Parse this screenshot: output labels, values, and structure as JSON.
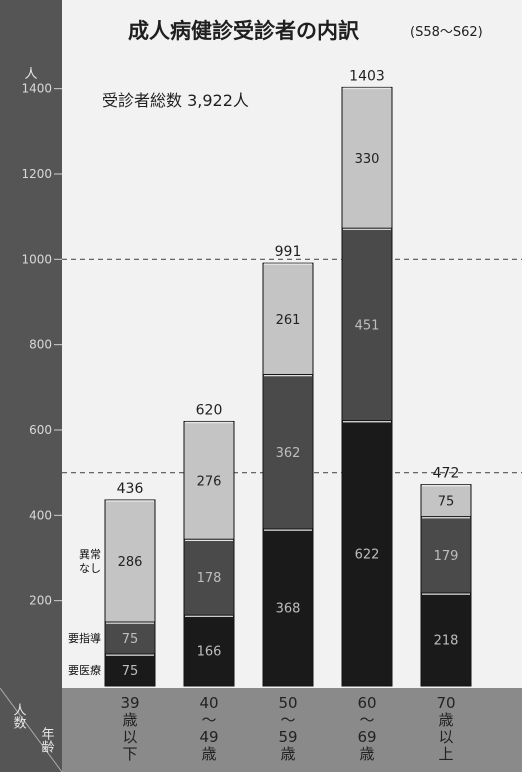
{
  "chart_data": {
    "type": "bar",
    "stacked": true,
    "title": "成人病健診受診者の内訳",
    "subtitle": "(S58～S62)",
    "annotation": "受診者総数 3,922人",
    "ylabel": "人",
    "ylabel_bottom": "人数",
    "xlabel": "年齢",
    "ylim": [
      0,
      1500
    ],
    "yticks": [
      200,
      400,
      600,
      800,
      1000,
      1200,
      1400
    ],
    "ytick_labels": [
      "200",
      "400",
      "600",
      "800",
      "1000",
      "1200",
      "1400"
    ],
    "reference_lines": [
      1000,
      500
    ],
    "categories": [
      "39歳以下",
      "40～49歳",
      "50～59歳",
      "60～69歳",
      "70歳以上"
    ],
    "category_lines": [
      [
        "39",
        "歳",
        "以",
        "下"
      ],
      [
        "40",
        "～",
        "49",
        "歳"
      ],
      [
        "50",
        "～",
        "59",
        "歳"
      ],
      [
        "60",
        "～",
        "69",
        "歳"
      ],
      [
        "70",
        "歳",
        "以",
        "上"
      ]
    ],
    "series": [
      {
        "name": "要医療",
        "values": [
          75,
          166,
          368,
          622,
          218
        ],
        "color": "#1a1a1a",
        "label_color": "#bdbdbd"
      },
      {
        "name": "要指導",
        "values": [
          75,
          178,
          362,
          451,
          179
        ],
        "color": "#4a4a4a",
        "label_color": "#bdbdbd"
      },
      {
        "name": "異常なし",
        "values": [
          286,
          276,
          261,
          330,
          75
        ],
        "color": "#c4c4c4",
        "label_color": "#222222"
      }
    ],
    "legend_labels": [
      [
        "要医療"
      ],
      [
        "要指導"
      ],
      [
        "異常",
        "なし"
      ]
    ],
    "totals": [
      436,
      620,
      991,
      1403,
      472
    ],
    "total_labels": [
      "436",
      "620",
      "991",
      "1403",
      "472"
    ],
    "segment_labels": [
      [
        "75",
        "166",
        "368",
        "622",
        "218"
      ],
      [
        "75",
        "178",
        "362",
        "451",
        "179"
      ],
      [
        "286",
        "276",
        "261",
        "330",
        "75"
      ]
    ],
    "grid": false,
    "legend": "left"
  }
}
